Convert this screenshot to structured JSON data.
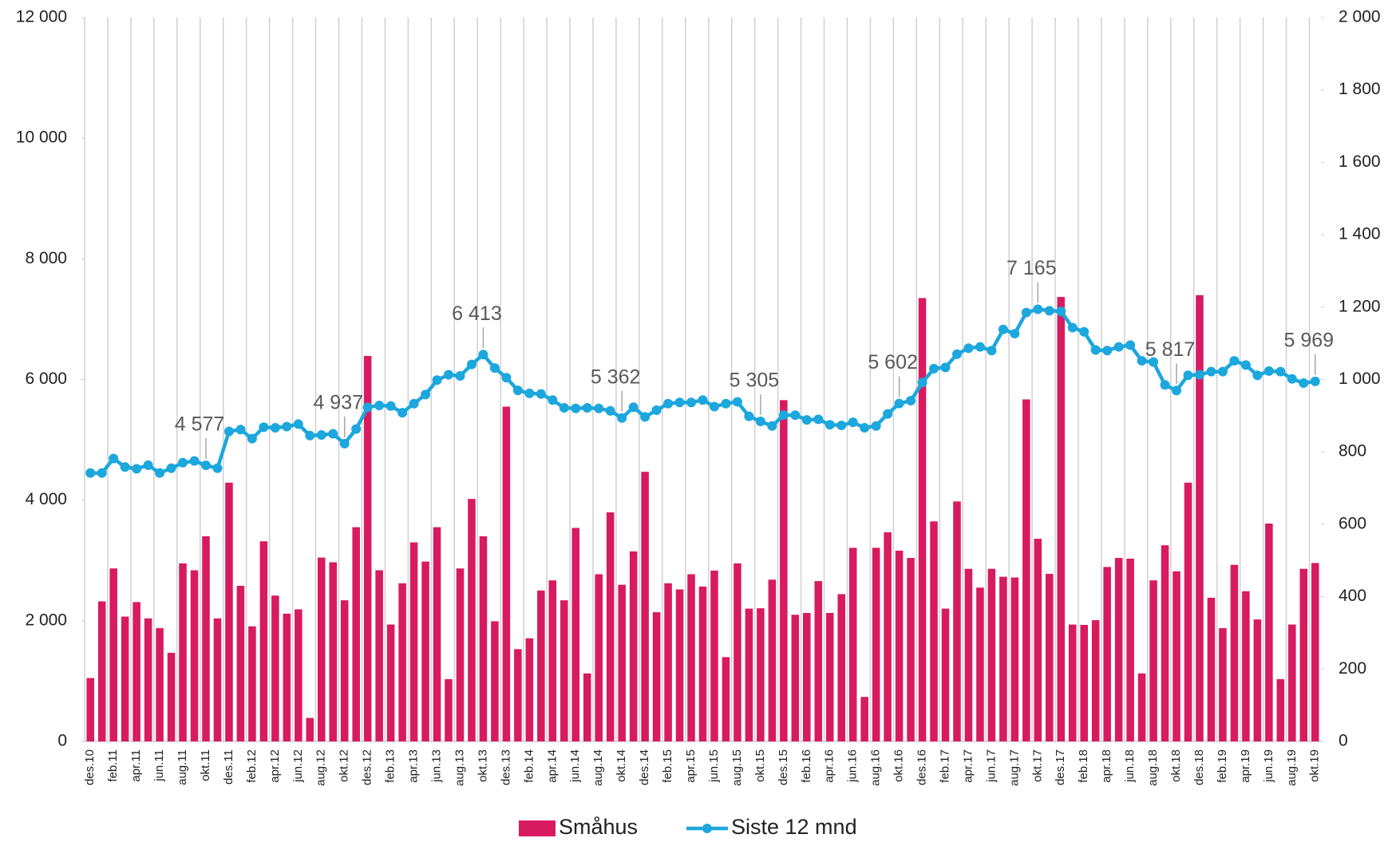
{
  "chart_data": {
    "type": "bar",
    "categories": [
      "des.10",
      null,
      "feb.11",
      null,
      "apr.11",
      null,
      "jun.11",
      null,
      "aug.11",
      null,
      "okt.11",
      null,
      "des.11",
      null,
      "feb.12",
      null,
      "apr.12",
      null,
      "jun.12",
      null,
      "aug.12",
      null,
      "okt.12",
      null,
      "des.12",
      null,
      "feb.13",
      null,
      "apr.13",
      null,
      "jun.13",
      null,
      "aug.13",
      null,
      "okt.13",
      null,
      "des.13",
      null,
      "feb.14",
      null,
      "apr.14",
      null,
      "jun.14",
      null,
      "aug.14",
      null,
      "okt.14",
      null,
      "des.14",
      null,
      "feb.15",
      null,
      "apr.15",
      null,
      "jun.15",
      null,
      "aug.15",
      null,
      "okt.15",
      null,
      "des.15",
      null,
      "feb.16",
      null,
      "apr.16",
      null,
      "jun.16",
      null,
      "aug.16",
      null,
      "okt.16",
      null,
      "des.16",
      null,
      "feb.17",
      null,
      "apr.17",
      null,
      "jun.17",
      null,
      "aug.17",
      null,
      "okt.17",
      null,
      "des.17",
      null,
      "feb.18",
      null,
      "apr.18",
      null,
      "jun.18",
      null,
      "aug.18",
      null,
      "okt.18",
      null,
      "des.18",
      null,
      "feb.19",
      null,
      "apr.19",
      null,
      "jun.19",
      null,
      "aug.19",
      null,
      "okt.19"
    ],
    "series": [
      {
        "name": "Småhus",
        "type": "bar",
        "axis": "y2",
        "color": "#d81b5f",
        "values": [
          175,
          387,
          478,
          345,
          385,
          340,
          313,
          245,
          492,
          473,
          567,
          340,
          715,
          430,
          318,
          553,
          403,
          353,
          365,
          65,
          508,
          495,
          390,
          592,
          1065,
          473,
          323,
          437,
          550,
          497,
          592,
          172,
          478,
          670,
          567,
          332,
          925,
          255,
          285,
          417,
          445,
          390,
          590,
          188,
          462,
          633,
          433,
          525,
          745,
          357,
          437,
          420,
          462,
          428,
          472,
          233,
          492,
          367,
          368,
          447,
          943,
          350,
          355,
          443,
          355,
          407,
          535,
          123,
          535,
          578,
          527,
          507,
          1225,
          608,
          367,
          663,
          477,
          425,
          477,
          455,
          453,
          945,
          560,
          463,
          1228,
          323,
          322,
          335,
          482,
          507,
          505,
          188,
          445,
          542,
          470,
          715,
          1233,
          397,
          313,
          488,
          415,
          337,
          602,
          172,
          323,
          477,
          493
        ]
      },
      {
        "name": "Siste 12 mnd",
        "type": "line",
        "color": "#1ca7dd",
        "values": [
          4450,
          4450,
          4690,
          4550,
          4520,
          4580,
          4450,
          4530,
          4620,
          4650,
          4577,
          4530,
          5140,
          5170,
          5020,
          5210,
          5200,
          5220,
          5260,
          5070,
          5080,
          5100,
          4937,
          5180,
          5540,
          5570,
          5560,
          5450,
          5600,
          5750,
          5990,
          6080,
          6060,
          6250,
          6413,
          6190,
          6030,
          5820,
          5770,
          5760,
          5660,
          5530,
          5520,
          5530,
          5520,
          5480,
          5362,
          5540,
          5380,
          5490,
          5600,
          5620,
          5620,
          5660,
          5550,
          5600,
          5630,
          5390,
          5305,
          5230,
          5410,
          5410,
          5330,
          5340,
          5250,
          5240,
          5290,
          5200,
          5230,
          5430,
          5602,
          5650,
          5950,
          6180,
          6200,
          6420,
          6520,
          6540,
          6480,
          6830,
          6760,
          7110,
          7165,
          7140,
          7130,
          6860,
          6790,
          6490,
          6480,
          6540,
          6570,
          6310,
          6290,
          5910,
          5817,
          6070,
          6080,
          6130,
          6130,
          6310,
          6240,
          6070,
          6140,
          6130,
          6010,
          5940,
          5969
        ],
        "value_labels": [
          null,
          null,
          null,
          null,
          null,
          null,
          null,
          null,
          null,
          null,
          "4 577",
          null,
          null,
          null,
          null,
          null,
          null,
          null,
          null,
          null,
          null,
          null,
          "4 937",
          null,
          null,
          null,
          null,
          null,
          null,
          null,
          null,
          null,
          null,
          null,
          "6 413",
          null,
          null,
          null,
          null,
          null,
          null,
          null,
          null,
          null,
          null,
          null,
          "5 362",
          null,
          null,
          null,
          null,
          null,
          null,
          null,
          null,
          null,
          null,
          null,
          "5 305",
          null,
          null,
          null,
          null,
          null,
          null,
          null,
          null,
          null,
          null,
          null,
          "5 602",
          null,
          null,
          null,
          null,
          null,
          null,
          null,
          null,
          null,
          null,
          null,
          "7 165",
          null,
          null,
          null,
          null,
          null,
          null,
          null,
          null,
          null,
          null,
          null,
          "5 817",
          null,
          null,
          null,
          null,
          null,
          null,
          null,
          null,
          null,
          null,
          null,
          "5 969"
        ]
      }
    ],
    "ylim": [
      0,
      12000
    ],
    "yticks": [
      0,
      {
        "value": 2000,
        "label": "2 000"
      },
      {
        "value": 4000,
        "label": "4 000"
      },
      {
        "value": 6000,
        "label": "6 000"
      },
      {
        "value": 8000,
        "label": "8 000"
      },
      {
        "value": 10000,
        "label": "10 000"
      },
      {
        "value": 12000,
        "label": "12 000"
      }
    ],
    "y2lim": [
      0,
      2000
    ],
    "y2ticks": [
      0,
      200,
      400,
      600,
      800,
      {
        "value": 1000,
        "label": "1 000"
      },
      {
        "value": 1200,
        "label": "1 200"
      },
      {
        "value": 1400,
        "label": "1 400"
      },
      {
        "value": 1600,
        "label": "1 600"
      },
      {
        "value": 1800,
        "label": "1 800"
      },
      {
        "value": 2000,
        "label": "2 000"
      }
    ],
    "legend": "bottom"
  }
}
